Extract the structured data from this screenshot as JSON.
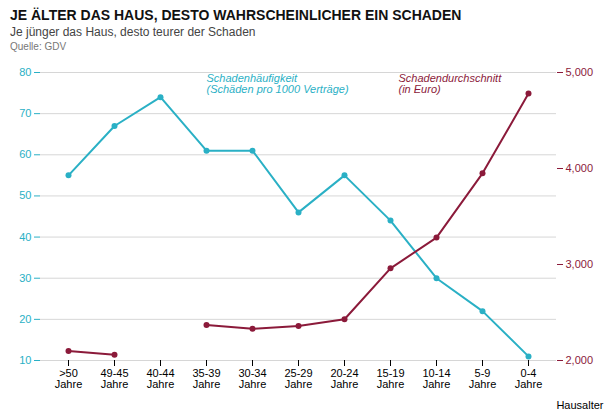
{
  "chart_data": {
    "type": "line",
    "title": "JE ÄLTER DAS HAUS, DESTO WAHRSCHEINLICHER EIN SCHADEN",
    "subtitle": "Je jünger das Haus, desto teurer der Schaden",
    "source": "Quelle: GDV",
    "xlabel": "Hausalter",
    "categories": [
      ">50\nJahre",
      "49-45\nJahre",
      "40-44\nJahre",
      "35-39\nJahre",
      "30-34\nJahre",
      "25-29\nJahre",
      "20-24\nJahre",
      "15-19\nJahre",
      "10-14\nJahre",
      "5-9\nJahre",
      "0-4\nJahre"
    ],
    "series": [
      {
        "name": "Schadenhäufigkeit\n(Schäden pro 1000 Verträge)",
        "color": "#2ab0c5",
        "marker": "circle",
        "values": [
          55,
          67,
          74,
          61,
          61,
          46,
          55,
          44,
          30,
          22,
          11
        ]
      },
      {
        "name": "Schadendurchschnitt\n(in Euro)",
        "color": "#8B1A3A",
        "marker": "circle",
        "axis": "y2",
        "values": [
          2100,
          2060,
          null,
          2370,
          2330,
          2360,
          2430,
          2960,
          3280,
          3950,
          4780
        ]
      }
    ],
    "ylim": [
      10,
      80
    ],
    "yticks": [
      10,
      20,
      30,
      40,
      50,
      60,
      70,
      80
    ],
    "y2lim": [
      2000,
      5000
    ],
    "y2ticks": [
      2000,
      3000,
      4000,
      5000
    ],
    "grid": true
  }
}
